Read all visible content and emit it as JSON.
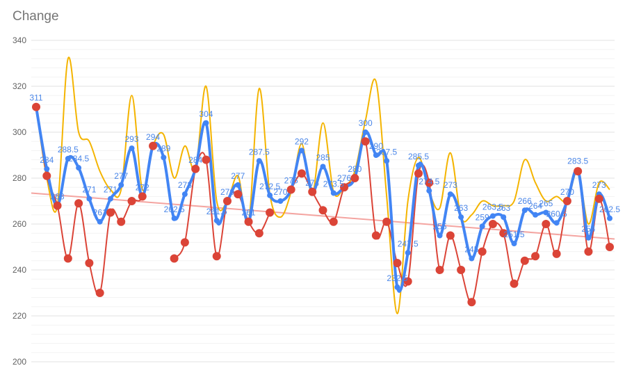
{
  "chart_data": {
    "type": "line",
    "title": "Change",
    "xlabel": "",
    "ylabel": "",
    "ylim": [
      200,
      340
    ],
    "yticks": [
      "340",
      "320",
      "300",
      "280",
      "260",
      "240",
      "220",
      "200"
    ],
    "grid": true,
    "legend": "none",
    "colors": {
      "series1": "#4285f4",
      "series1_labels": "#4a86e8",
      "series2": "#db4437",
      "series3": "#f4b400",
      "trendline": "#f4a4a0",
      "gridline": "#e0e0e0",
      "title": "#757575",
      "ticks": "#616161"
    },
    "series": [
      {
        "values": [
          311,
          284,
          268,
          288.5,
          284.5,
          271,
          261,
          271,
          277,
          293,
          272,
          294,
          289,
          262.5,
          273,
          284,
          304,
          261.5,
          270,
          277,
          261,
          287.5,
          272.5,
          270,
          275,
          292,
          274,
          285,
          273.5,
          276,
          280,
          300,
          290,
          287.5,
          232.5,
          247.5,
          285.5,
          274.5,
          255,
          273,
          263,
          245,
          259,
          263.5,
          263,
          251.5,
          266,
          264,
          265,
          260.5,
          270,
          283.5,
          254,
          273,
          262.5
        ],
        "labels": [
          "311",
          "284",
          "268",
          "288.5",
          "284.5",
          "271",
          "261",
          "271",
          "277",
          "293",
          "272",
          "294",
          "289",
          "262.5",
          "273",
          "284",
          "304",
          "261.5",
          "270",
          "277",
          "261",
          "287.5",
          "272.5",
          "270",
          "275",
          "292",
          "274",
          "285",
          "273.5",
          "276",
          "280",
          "300",
          "290",
          "287.5",
          "232.5",
          "247.5",
          "285.5",
          "274.5",
          "255",
          "273",
          "263",
          "245",
          "259",
          "263.5",
          "263",
          "251.5",
          "266",
          "264",
          "265",
          "260.5",
          "270",
          "283.5",
          "254",
          "273",
          "262.5"
        ]
      },
      {
        "values": [
          311,
          281,
          268,
          245,
          269,
          243,
          230,
          265,
          261,
          270,
          272,
          294,
          null,
          245,
          252,
          284,
          288,
          246,
          270,
          273,
          261,
          256,
          265,
          null,
          275,
          282,
          274,
          266,
          261,
          276,
          280,
          296,
          255,
          261,
          243,
          235,
          282,
          278,
          240,
          255,
          240,
          226,
          248,
          260,
          256,
          234,
          244,
          246,
          260,
          247,
          270,
          283,
          248,
          271,
          250
        ]
      },
      {
        "values": [
          311,
          280,
          268,
          332,
          300,
          296,
          283,
          275,
          275,
          316,
          275,
          294,
          299,
          280,
          294,
          284,
          320,
          270,
          270,
          281,
          261,
          319,
          273,
          263,
          274,
          295,
          273,
          304,
          274,
          276,
          283,
          305,
          322,
          272,
          221,
          270,
          289,
          274,
          267,
          291,
          263,
          264,
          270,
          268,
          268,
          270,
          288,
          278,
          270,
          272,
          270,
          283,
          260,
          278,
          275
        ]
      }
    ],
    "trendline": {
      "start": 273.5,
      "end": 253.5
    }
  }
}
